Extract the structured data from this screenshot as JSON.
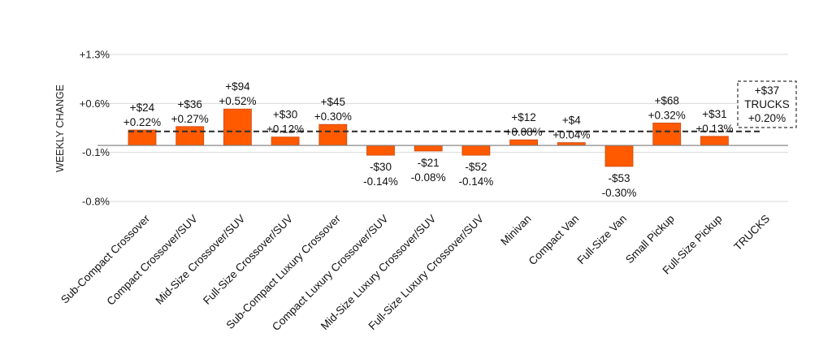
{
  "chart_data": {
    "type": "bar",
    "ylabel": "WEEKLY CHANGE",
    "ylim": [
      -0.8,
      1.3
    ],
    "yticks": [
      "+1.3%",
      "+0.6%",
      "-0.1%",
      "-0.8%"
    ],
    "ytick_values": [
      1.3,
      0.6,
      -0.1,
      -0.8
    ],
    "categories": [
      "Sub-Compact Crossover",
      "Compact Crossover/SUV",
      "Mid-Size Crossover/SUV",
      "Full-Size Crossover/SUV",
      "Sub-Compact Luxury Crossover",
      "Compact Luxury Crossover/SUV",
      "Mid-Size Luxury Crossover/SUV",
      "Full-Size Luxury Crossover/SUV",
      "Minivan",
      "Compact Van",
      "Full-Size Van",
      "Small Pickup",
      "Full-Size Pickup",
      "TRUCKS"
    ],
    "values": [
      0.22,
      0.27,
      0.52,
      0.12,
      0.3,
      -0.14,
      -0.08,
      -0.14,
      0.08,
      0.04,
      -0.3,
      0.32,
      0.13,
      null
    ],
    "dollar_labels": [
      "+$24",
      "+$36",
      "+$94",
      "+$30",
      "+$45",
      "-$30",
      "-$21",
      "-$52",
      "+$12",
      "+$4",
      "-$53",
      "+$68",
      "+$31",
      ""
    ],
    "percent_labels": [
      "+0.22%",
      "+0.27%",
      "+0.52%",
      "+0.12%",
      "+0.30%",
      "-0.14%",
      "-0.08%",
      "-0.14%",
      "+0.08%",
      "+0.04%",
      "-0.30%",
      "+0.32%",
      "+0.13%",
      ""
    ],
    "average_line": 0.2,
    "summary_box": {
      "dollar": "+$37",
      "name": "TRUCKS",
      "percent": "+0.20%"
    },
    "colors": {
      "bar": "#ff5a00",
      "bar_edge": "#c84a10",
      "axis": "#7a7a7a",
      "grid": "#d9d9d9",
      "avg_line": "#333333"
    }
  }
}
